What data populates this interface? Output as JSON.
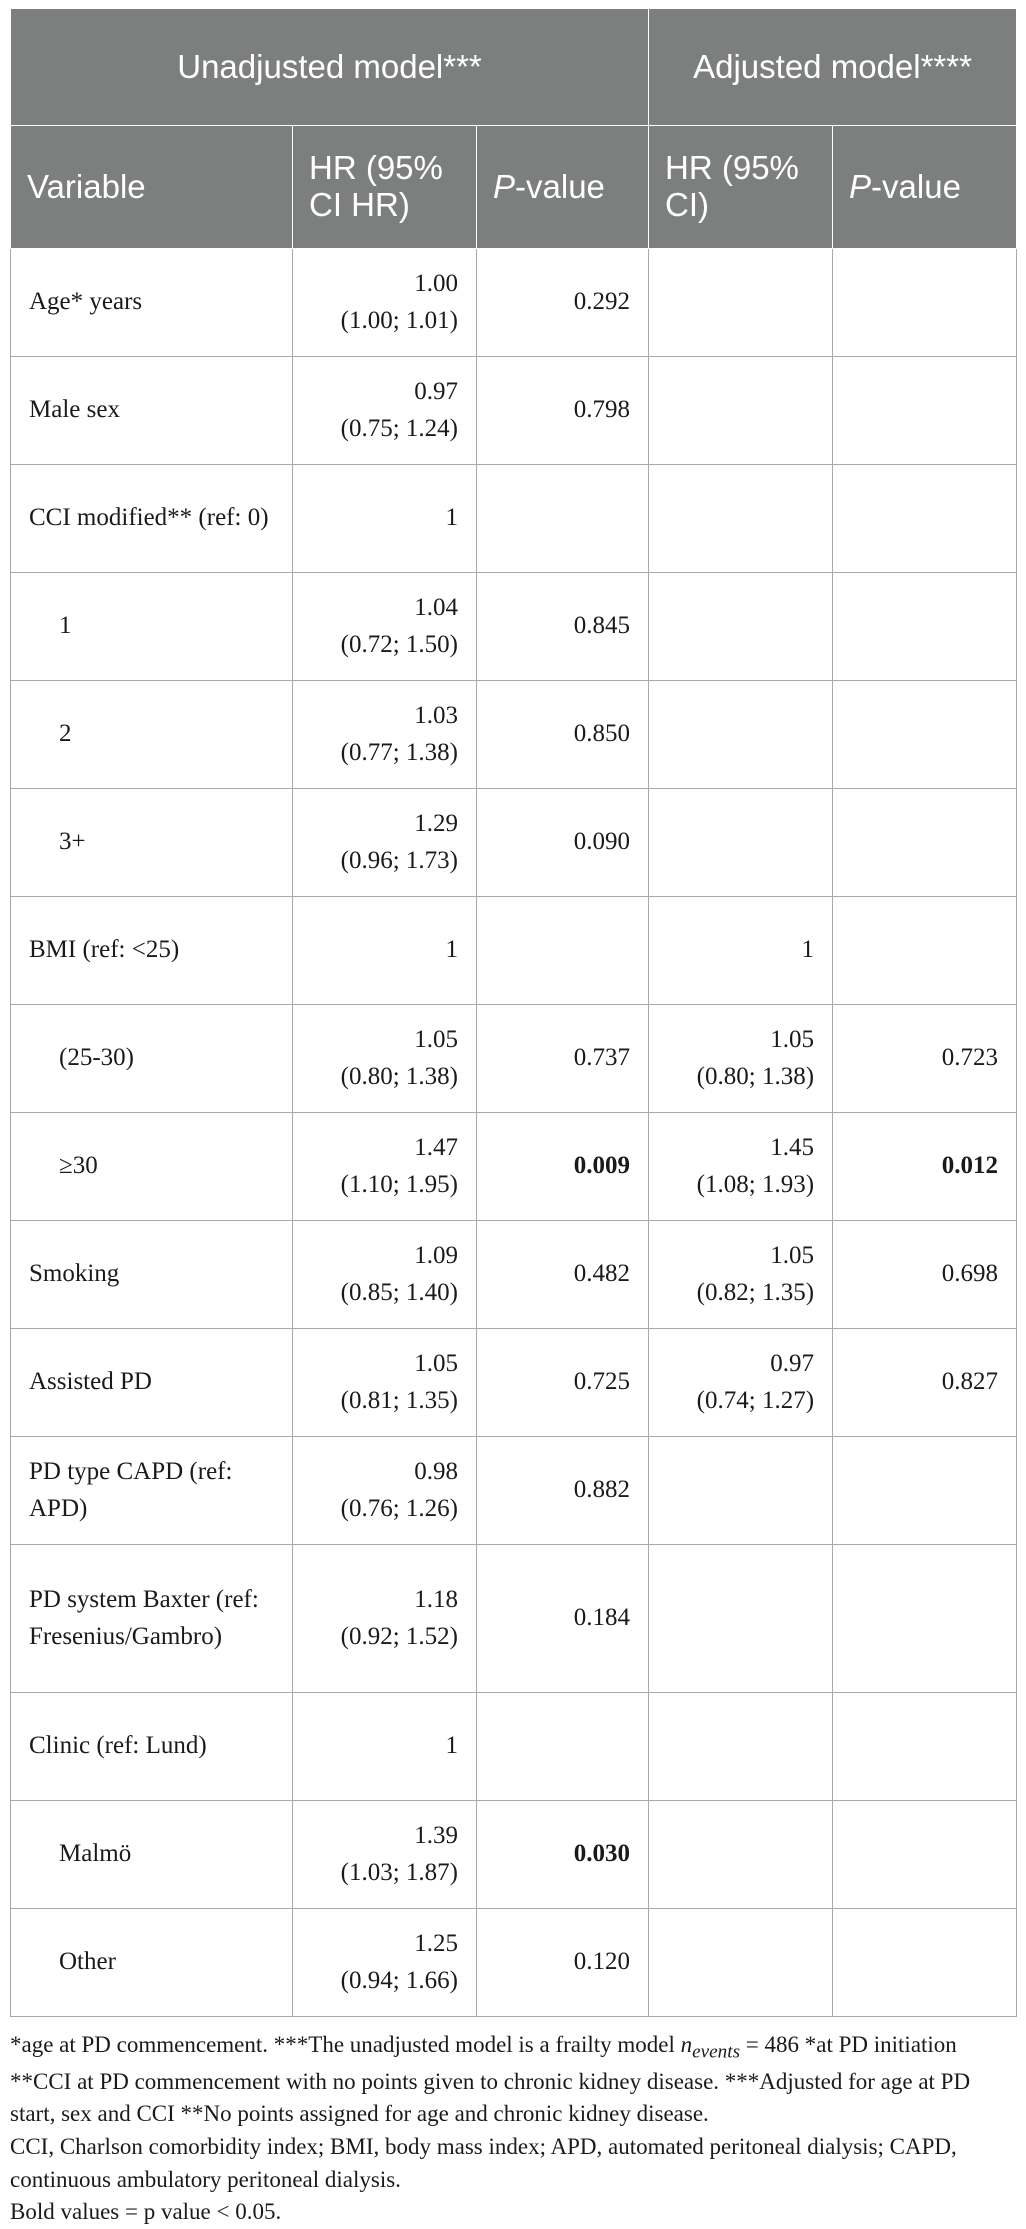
{
  "header": {
    "group_unadjusted": "Unadjusted model***",
    "group_adjusted": "Adjusted model****",
    "col_variable": "Variable",
    "col_hr_unadj": "HR (95% CI HR)",
    "col_p_unadj_italic": "P",
    "col_p_unadj_rest": "-value",
    "col_hr_adj": "HR (95% CI)",
    "col_p_adj_italic": "P",
    "col_p_adj_rest": "-value"
  },
  "rows": [
    {
      "variable": "Age* years",
      "indent": false,
      "hr1": "1.00",
      "ci1": "(1.00; 1.01)",
      "p1": "0.292",
      "hr2": "",
      "ci2": "",
      "p2": ""
    },
    {
      "variable": "Male sex",
      "indent": false,
      "hr1": "0.97",
      "ci1": "(0.75; 1.24)",
      "p1": "0.798",
      "hr2": "",
      "ci2": "",
      "p2": ""
    },
    {
      "variable": "CCI modified** (ref: 0)",
      "indent": false,
      "hr1": "1",
      "ci1": "",
      "p1": "",
      "hr2": "",
      "ci2": "",
      "p2": ""
    },
    {
      "variable": "1",
      "indent": true,
      "hr1": "1.04",
      "ci1": "(0.72; 1.50)",
      "p1": "0.845",
      "hr2": "",
      "ci2": "",
      "p2": ""
    },
    {
      "variable": "2",
      "indent": true,
      "hr1": "1.03",
      "ci1": "(0.77; 1.38)",
      "p1": "0.850",
      "hr2": "",
      "ci2": "",
      "p2": ""
    },
    {
      "variable": "3+",
      "indent": true,
      "hr1": "1.29",
      "ci1": "(0.96; 1.73)",
      "p1": "0.090",
      "hr2": "",
      "ci2": "",
      "p2": ""
    },
    {
      "variable": "BMI (ref: <25)",
      "indent": false,
      "hr1": "1",
      "ci1": "",
      "p1": "",
      "hr2": "1",
      "ci2": "",
      "p2": ""
    },
    {
      "variable": "(25-30)",
      "indent": true,
      "hr1": "1.05",
      "ci1": "(0.80; 1.38)",
      "p1": "0.737",
      "hr2": "1.05",
      "ci2": "(0.80; 1.38)",
      "p2": "0.723"
    },
    {
      "variable": "≥30",
      "indent": true,
      "hr1": "1.47",
      "ci1": "(1.10; 1.95)",
      "p1": "0.009",
      "p1_bold": true,
      "hr2": "1.45",
      "ci2": "(1.08; 1.93)",
      "p2": "0.012",
      "p2_bold": true
    },
    {
      "variable": "Smoking",
      "indent": false,
      "hr1": "1.09",
      "ci1": "(0.85; 1.40)",
      "p1": "0.482",
      "hr2": "1.05",
      "ci2": "(0.82; 1.35)",
      "p2": "0.698"
    },
    {
      "variable": "Assisted PD",
      "indent": false,
      "hr1": "1.05",
      "ci1": "(0.81; 1.35)",
      "p1": "0.725",
      "hr2": "0.97",
      "ci2": "(0.74; 1.27)",
      "p2": "0.827"
    },
    {
      "variable": "PD type CAPD (ref: APD)",
      "indent": false,
      "hr1": "0.98",
      "ci1": "(0.76; 1.26)",
      "p1": "0.882",
      "hr2": "",
      "ci2": "",
      "p2": ""
    },
    {
      "variable": "PD system Baxter (ref: Fresenius/Gambro)",
      "indent": false,
      "tall": true,
      "hr1": "1.18",
      "ci1": "(0.92; 1.52)",
      "p1": "0.184",
      "hr2": "",
      "ci2": "",
      "p2": ""
    },
    {
      "variable": "Clinic (ref: Lund)",
      "indent": false,
      "hr1": "1",
      "ci1": "",
      "p1": "",
      "hr2": "",
      "ci2": "",
      "p2": ""
    },
    {
      "variable": "Malmö",
      "indent": true,
      "hr1": "1.39",
      "ci1": "(1.03; 1.87)",
      "p1": "0.030",
      "p1_bold": true,
      "hr2": "",
      "ci2": "",
      "p2": ""
    },
    {
      "variable": "Other",
      "indent": true,
      "hr1": "1.25",
      "ci1": "(0.94; 1.66)",
      "p1": "0.120",
      "hr2": "",
      "ci2": "",
      "p2": ""
    }
  ],
  "notes": {
    "line1_a": "*age at PD commencement. ***The unadjusted model is a frailty model ",
    "line1_n": "n",
    "line1_sub": "events",
    "line1_b": " = 486 *at PD initiation **CCI at PD commencement with no points given to chronic kidney disease. ***Adjusted for age at PD start, sex and CCI **No points assigned for age and chronic kidney disease.",
    "line2": "CCI, Charlson comorbidity index; BMI, body mass index; APD, automated peritoneal dialysis; CAPD, continuous ambulatory peritoneal dialysis.",
    "line3": "Bold values = p value < 0.05."
  }
}
